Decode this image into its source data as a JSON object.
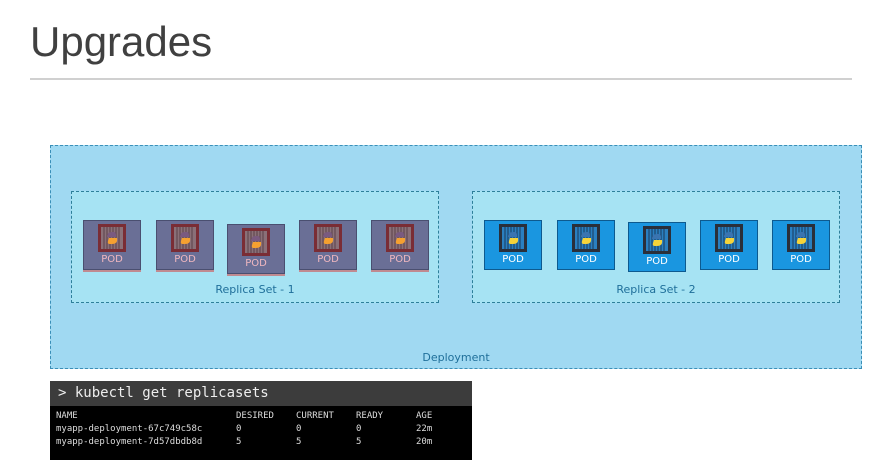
{
  "slide": {
    "title": "Upgrades"
  },
  "deployment": {
    "label": "Deployment",
    "replica_sets": [
      {
        "label": "Replica Set - 1",
        "state": "old",
        "color": "#6a6f96",
        "pods": [
          "POD",
          "POD",
          "POD",
          "POD",
          "POD"
        ]
      },
      {
        "label": "Replica Set - 2",
        "state": "new",
        "color": "#1a96e0",
        "pods": [
          "POD",
          "POD",
          "POD",
          "POD",
          "POD"
        ]
      }
    ],
    "pod_icon": "python-logo-icon"
  },
  "terminal": {
    "command": "> kubectl get replicasets",
    "headers": [
      "NAME",
      "DESIRED",
      "CURRENT",
      "READY",
      "AGE"
    ],
    "rows": [
      [
        "myapp-deployment-67c749c58c",
        "0",
        "0",
        "0",
        "22m"
      ],
      [
        "myapp-deployment-7d57dbdb8d",
        "5",
        "5",
        "5",
        "20m"
      ]
    ]
  }
}
